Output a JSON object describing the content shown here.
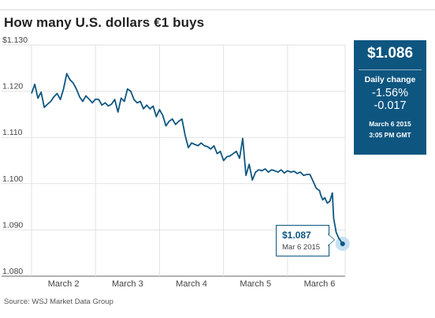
{
  "title": "How many U.S. dollars €1 buys",
  "source": "Source: WSJ Market Data Group",
  "info_box": {
    "price": "$1.086",
    "change_label": "Daily change",
    "change_pct": "-1.56%",
    "change_abs": "-0.017",
    "date": "March 6 2015",
    "time": "3:05 PM GMT"
  },
  "callout": {
    "price": "$1.087",
    "date": "Mar 6 2015"
  },
  "colors": {
    "line": "#0e5680",
    "grid": "#e2e2e2",
    "box": "#0e5680",
    "highlight": "#bcdcf0"
  },
  "chart_data": {
    "type": "line",
    "title": "How many U.S. dollars €1 buys",
    "xlabel": "",
    "ylabel": "",
    "x_ticks": [
      "March 2",
      "March 3",
      "March 4",
      "March 5",
      "March 6"
    ],
    "y_ticks": [
      "$1.130",
      "1.120",
      "1.110",
      "1.100",
      "1.090",
      "1.080"
    ],
    "ylim": [
      1.08,
      1.13
    ],
    "xlim": [
      0,
      4.9
    ],
    "grid": true,
    "series": [
      {
        "x": [
          0,
          0.05,
          0.1,
          0.15,
          0.2,
          0.25,
          0.3,
          0.35,
          0.4,
          0.45,
          0.5,
          0.55,
          0.6,
          0.65,
          0.7,
          0.75,
          0.8,
          0.85,
          0.9,
          0.95,
          1.0,
          1.05,
          1.1,
          1.15,
          1.2,
          1.25,
          1.3,
          1.35,
          1.4,
          1.45,
          1.5,
          1.55,
          1.6,
          1.65,
          1.7,
          1.75,
          1.8,
          1.85,
          1.9,
          1.95,
          2.0,
          2.05,
          2.1,
          2.15,
          2.2,
          2.25,
          2.3,
          2.35,
          2.4,
          2.45,
          2.5,
          2.55,
          2.6,
          2.65,
          2.7,
          2.75,
          2.8,
          2.85,
          2.9,
          2.95,
          3.0,
          3.05,
          3.1,
          3.15,
          3.2,
          3.25,
          3.3,
          3.35,
          3.4,
          3.45,
          3.5,
          3.55,
          3.6,
          3.65,
          3.7,
          3.75,
          3.8,
          3.85,
          3.9,
          3.95,
          4.0,
          4.05,
          4.1,
          4.15,
          4.2,
          4.25,
          4.3,
          4.35,
          4.4,
          4.45,
          4.5,
          4.52,
          4.55,
          4.58,
          4.62,
          4.66,
          4.7,
          4.72,
          4.76,
          4.8,
          4.86
        ],
        "values": [
          1.1195,
          1.1215,
          1.1185,
          1.1198,
          1.1165,
          1.1172,
          1.1178,
          1.1188,
          1.1195,
          1.1182,
          1.1205,
          1.1238,
          1.1225,
          1.1218,
          1.1205,
          1.1188,
          1.1178,
          1.119,
          1.1183,
          1.1175,
          1.1183,
          1.1182,
          1.117,
          1.1175,
          1.1168,
          1.1172,
          1.1182,
          1.1155,
          1.1185,
          1.1178,
          1.1205,
          1.12,
          1.1182,
          1.1175,
          1.1178,
          1.1162,
          1.117,
          1.1162,
          1.1168,
          1.1145,
          1.116,
          1.1148,
          1.1125,
          1.1135,
          1.114,
          1.1128,
          1.1135,
          1.114,
          1.1105,
          1.1078,
          1.1088,
          1.1085,
          1.1082,
          1.1088,
          1.1082,
          1.108,
          1.1075,
          1.1082,
          1.1065,
          1.107,
          1.105,
          1.1058,
          1.106,
          1.1065,
          1.107,
          1.1055,
          1.1098,
          1.1018,
          1.1042,
          1.1008,
          1.1025,
          1.103,
          1.1028,
          1.1032,
          1.1025,
          1.103,
          1.1028,
          1.1025,
          1.103,
          1.1023,
          1.1028,
          1.1025,
          1.1027,
          1.1022,
          1.1025,
          1.1018,
          1.102,
          1.102,
          1.1005,
          1.099,
          1.0985,
          1.0975,
          1.0965,
          1.097,
          1.0958,
          1.0962,
          1.098,
          1.0925,
          1.0895,
          1.0882,
          1.087
        ]
      }
    ],
    "last_point": {
      "x": 4.86,
      "y": 1.087
    }
  }
}
